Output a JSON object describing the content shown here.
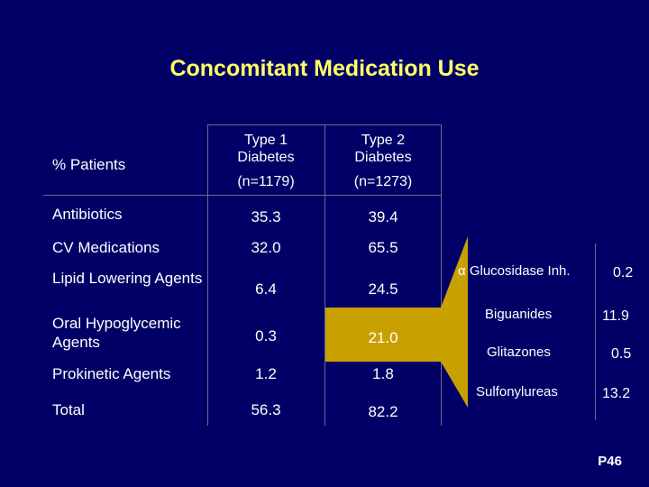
{
  "title": "Concomitant Medication Use",
  "table": {
    "row_header_label": "% Patients",
    "columns": [
      {
        "line1": "Type 1",
        "line2": "Diabetes",
        "line3": "(n=1179)"
      },
      {
        "line1": "Type 2",
        "line2": "Diabetes",
        "line3": "(n=1273)"
      }
    ],
    "rows": [
      {
        "label": "Antibiotics",
        "v1": "35.3",
        "v2": "39.4"
      },
      {
        "label": "CV Medications",
        "v1": "32.0",
        "v2": "65.5"
      },
      {
        "label": "Lipid Lowering Agents",
        "v1": "6.4",
        "v2": "24.5"
      },
      {
        "label": "Oral Hypoglycemic Agents",
        "v1": "0.3",
        "v2": "21.0"
      },
      {
        "label": "Prokinetic Agents",
        "v1": "1.2",
        "v2": "1.8"
      },
      {
        "label": "Total",
        "v1": "56.3",
        "v2": "82.2"
      }
    ]
  },
  "breakdown": [
    {
      "label": "α Glucosidase Inh.",
      "value": "0.2"
    },
    {
      "label": "Biguanides",
      "value": "11.9"
    },
    {
      "label": "Glitazones",
      "value": "0.5"
    },
    {
      "label": "Sulfonylureas",
      "value": "13.2"
    }
  ],
  "highlight_color": "#c8a000",
  "page_number": "P46"
}
